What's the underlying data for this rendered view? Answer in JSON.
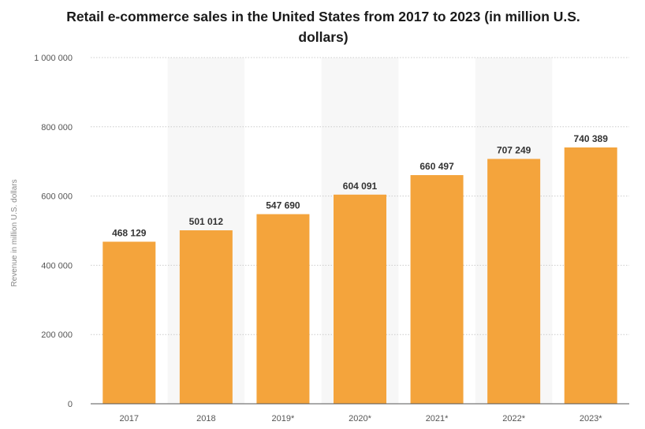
{
  "chart_data": {
    "type": "bar",
    "title": "Retail e-commerce sales in the United States from 2017 to 2023 (in million U.S. dollars)",
    "ylabel": "Revenue in million U.S. dollars",
    "xlabel": "",
    "categories": [
      "2017",
      "2018",
      "2019*",
      "2020*",
      "2021*",
      "2022*",
      "2023*"
    ],
    "values": [
      468129,
      501012,
      547690,
      604091,
      660497,
      707249,
      740389
    ],
    "value_labels": [
      "468 129",
      "501 012",
      "547 690",
      "604 091",
      "660 497",
      "707 249",
      "740 389"
    ],
    "ylim": [
      0,
      1000000
    ],
    "yticks": [
      0,
      200000,
      400000,
      600000,
      800000,
      1000000
    ],
    "ytick_labels": [
      "0",
      "200 000",
      "400 000",
      "600 000",
      "800 000",
      "1 000 000"
    ],
    "grid": "horizontal-dotted",
    "bar_color": "#f4a43c",
    "band_color": "#f7f7f7"
  }
}
